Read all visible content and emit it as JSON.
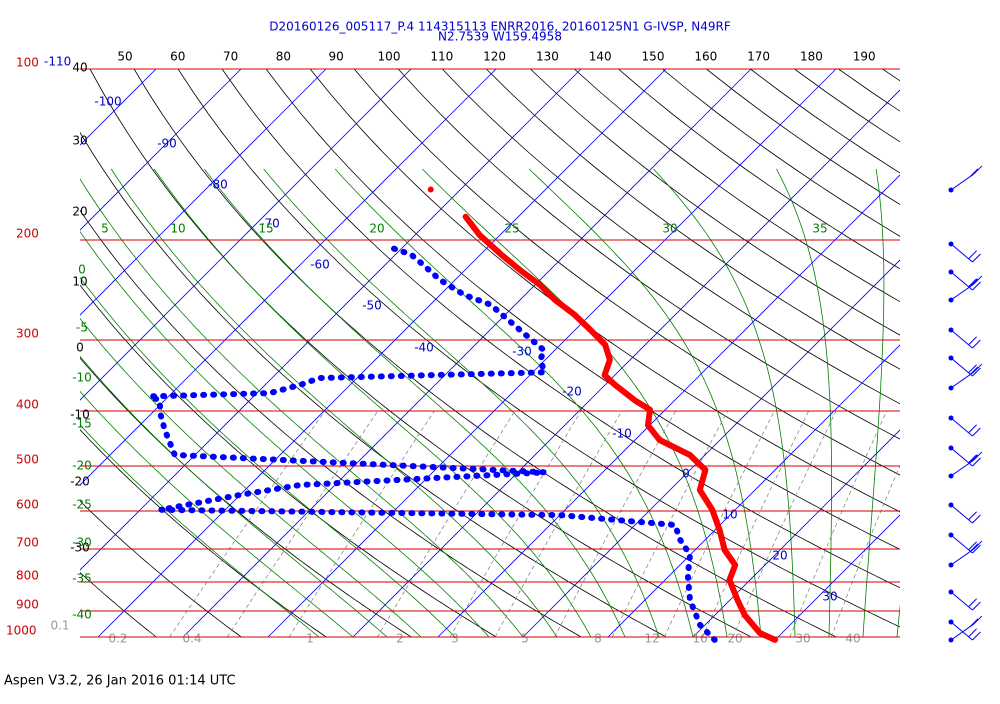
{
  "title": "D20160126_005117_P.4 114315113 ENRR2016, 20160125N1 G-IVSP, N49RF",
  "subtitle": "N2.7539 W159.4958",
  "footer": "Aspen V3.2, 26 Jan 2016  01:14 UTC",
  "chart_data": {
    "type": "skew-t",
    "log_y": true,
    "ylim": [
      1000,
      100
    ],
    "yticks": [
      100,
      200,
      300,
      400,
      500,
      600,
      700,
      800,
      900,
      1000
    ],
    "isotherm_top_label": -110,
    "isotherms": [
      -100,
      -90,
      -80,
      -70,
      -60,
      -50,
      -40,
      -30,
      -20,
      -10,
      0,
      10,
      20,
      30
    ],
    "top_scale": [
      50,
      60,
      70,
      80,
      90,
      100,
      110,
      120,
      130,
      140,
      150,
      160,
      170,
      180,
      190
    ],
    "left_scale": [
      40,
      30,
      20,
      10,
      0,
      -10,
      -20,
      -30
    ],
    "green_top_scale": [
      5,
      10,
      15,
      20,
      25,
      30,
      35
    ],
    "green_left_scale": [
      0,
      -5,
      -10,
      -15,
      -20,
      -25,
      -30,
      -35,
      -40
    ],
    "mixing_ratios": [
      0.1,
      0.2,
      0.4,
      1,
      2,
      3,
      5,
      8,
      12,
      16,
      20,
      30,
      40
    ],
    "series": [
      {
        "color": "#ff0000",
        "p": [
          1012,
          984,
          915,
          861,
          794,
          747,
          703,
          649,
          597,
          551,
          508,
          478,
          450,
          424,
          398,
          383,
          360,
          346,
          325,
          306,
          288,
          271,
          255,
          240,
          226,
          212,
          196,
          182
        ],
        "t": [
          30.0,
          27.4,
          23.5,
          20.9,
          17.6,
          16.5,
          13.5,
          10.6,
          7.3,
          3.5,
          1.8,
          -1.8,
          -7.1,
          -10.2,
          -11.8,
          -14.7,
          -18.8,
          -21.2,
          -22.4,
          -24.7,
          -28.2,
          -31.8,
          -35.9,
          -39.4,
          -43.5,
          -47.6,
          -52.4,
          -56.2
        ]
      },
      {
        "color": "#0000ff",
        "p": [
          1012,
          952,
          861,
          778,
          717,
          675,
          635,
          610,
          597,
          562,
          540,
          513,
          478,
          432,
          406,
          383,
          377,
          372,
          360,
          350,
          342,
          325,
          313,
          288,
          260,
          250,
          235,
          222,
          212,
          206
        ],
        "t": [
          22.9,
          19.4,
          15.3,
          12.1,
          10.0,
          7.1,
          4.7,
          -10.0,
          -57.6,
          -50.0,
          -44.1,
          -16.8,
          -62.4,
          -66.5,
          -68.8,
          -70.6,
          -72.2,
          -58.5,
          -55.9,
          -54.4,
          -28.6,
          -30.6,
          -31.2,
          -36.5,
          -42.9,
          -47.1,
          -51.8,
          -55.3,
          -58.2,
          -61.5
        ]
      }
    ],
    "outlier": {
      "color": "#ff0000",
      "p": 163,
      "t": -63.5
    }
  }
}
